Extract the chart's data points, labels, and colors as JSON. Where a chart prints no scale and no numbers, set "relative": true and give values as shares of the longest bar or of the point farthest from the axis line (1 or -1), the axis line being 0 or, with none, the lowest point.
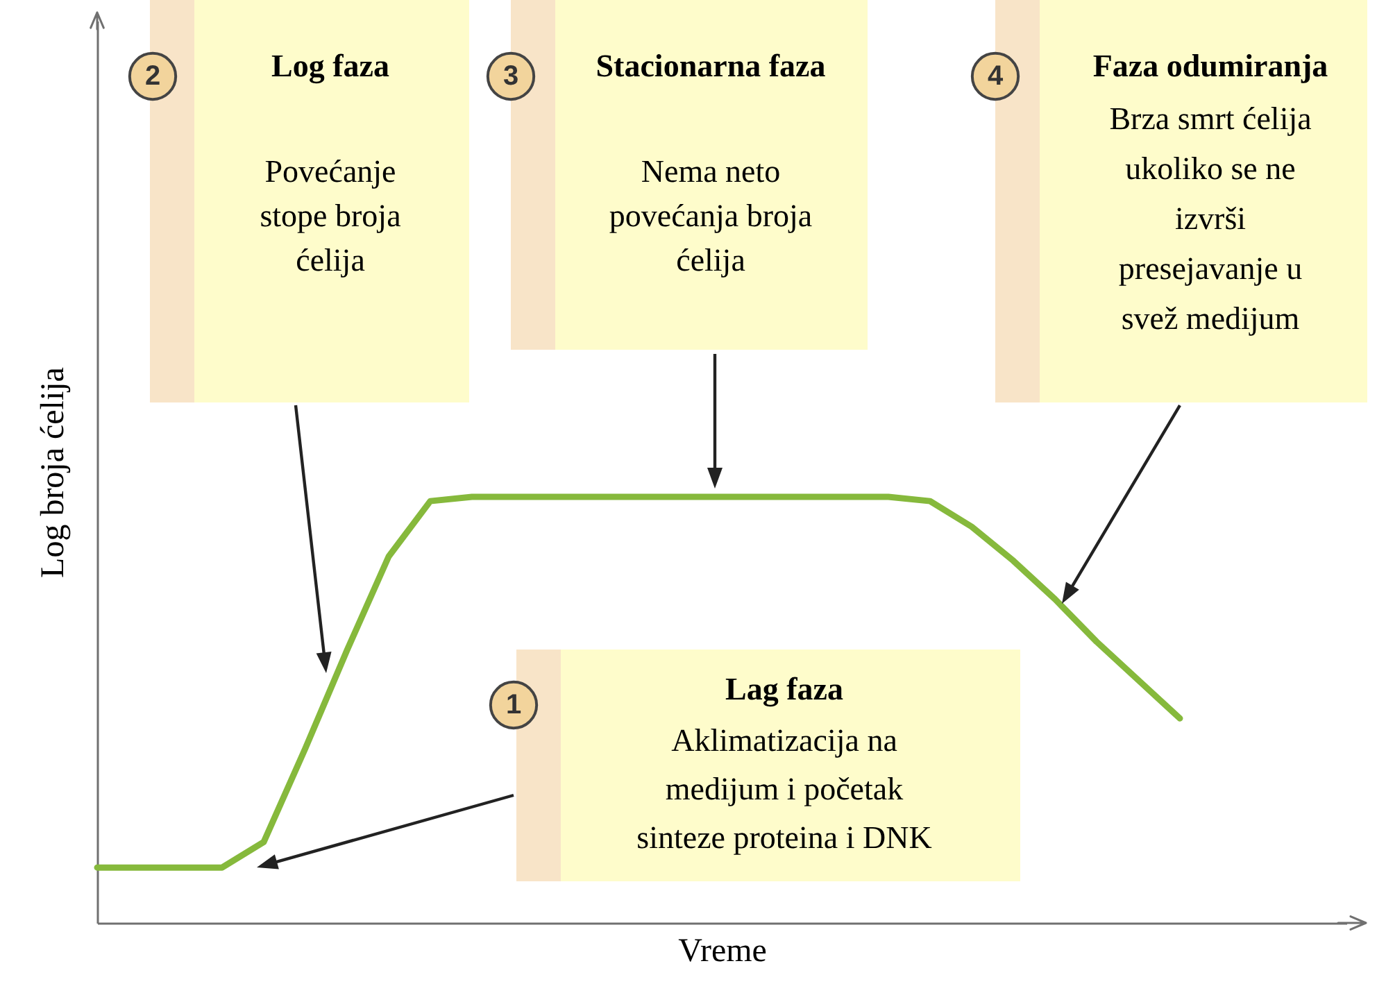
{
  "chart_data": {
    "type": "line",
    "relative": true,
    "xlabel": "Vreme",
    "ylabel": "Log broja ćelija",
    "categories": [
      null,
      null,
      null,
      null,
      null,
      null,
      null,
      null,
      null,
      null,
      null,
      null,
      null,
      null,
      null,
      null,
      null,
      null,
      null,
      null,
      null,
      null,
      null,
      null,
      null,
      null,
      null,
      null,
      null,
      null,
      null
    ],
    "series": [
      {
        "color": "#86b93c",
        "values": [
          0.13,
          0.13,
          0.13,
          0.13,
          0.19,
          0.41,
          0.64,
          0.86,
          0.99,
          1,
          1,
          1,
          1,
          1,
          1,
          1,
          1,
          1,
          1,
          1,
          0.99,
          0.93,
          0.85,
          0.76,
          0.66,
          0.57,
          0.48,
          null,
          null,
          null,
          null
        ]
      }
    ],
    "annotations": [
      "1",
      "Lag faza",
      "Aklimatizacija na\nmedijum i početak\nsinteze proteina i DNK",
      "2",
      "Log faza",
      "Povećanje\nstope broja\nćelija",
      "3",
      "Stacionarna faza",
      "Nema neto\npovećanja broja\nćelija",
      "4",
      "Faza odumiranja",
      "Brza smrt ćelija\nukoliko se ne\nizvrši\npresejavanje u\nsvež medijum"
    ],
    "tick_labels": false,
    "grid": false,
    "marker": "none",
    "line_style": "solid"
  }
}
